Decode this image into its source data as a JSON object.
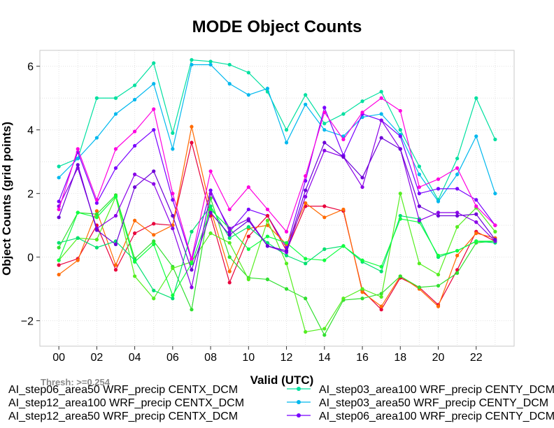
{
  "chart_data": {
    "type": "line",
    "title": "MODE Object Counts",
    "xlabel": "Valid (UTC)",
    "ylabel": "Object Counts (grid points)",
    "annotation": "Thresh: >=0.254",
    "xlim": [
      -1,
      24
    ],
    "ylim": [
      -2.8,
      6.5
    ],
    "grid": true,
    "x": [
      0,
      1,
      2,
      3,
      4,
      5,
      6,
      7,
      8,
      9,
      10,
      11,
      12,
      13,
      14,
      15,
      16,
      17,
      18,
      19,
      20,
      21,
      22,
      23
    ],
    "x_ticks": [
      0,
      2,
      4,
      6,
      8,
      10,
      12,
      14,
      16,
      18,
      20,
      22
    ],
    "x_tick_labels": [
      "00",
      "02",
      "04",
      "06",
      "08",
      "10",
      "12",
      "14",
      "16",
      "18",
      "20",
      "22"
    ],
    "y_ticks": [
      -2,
      0,
      2,
      4,
      6
    ],
    "y_tick_labels": [
      "−2",
      "0",
      "2",
      "4",
      "6"
    ],
    "legend_position": "bottom",
    "series": [
      {
        "name": "AI_step03_area100 WRF_precip CENTY_DCM",
        "color": "#00e0a0",
        "values": [
          2.85,
          3.1,
          5.0,
          5.0,
          5.4,
          6.1,
          3.9,
          6.2,
          6.15,
          6.05,
          5.8,
          5.2,
          4.0,
          5.1,
          4.2,
          4.5,
          4.9,
          5.2,
          4.0,
          2.85,
          1.8,
          3.1,
          5.0,
          3.7
        ]
      },
      {
        "name": "AI_step03_area50 WRF_precip CENTY_DCM",
        "color": "#00b8ee",
        "values": [
          2.5,
          3.1,
          3.75,
          4.5,
          4.95,
          5.45,
          3.4,
          6.05,
          6.05,
          5.45,
          5.1,
          5.3,
          3.6,
          4.8,
          4.0,
          3.8,
          4.4,
          4.5,
          3.85,
          2.6,
          1.75,
          2.6,
          3.8,
          2.0
        ]
      },
      {
        "name": "AI_step06_area100 WRF_precip CENTY_DCM",
        "color": "#7800ff",
        "values": [
          1.75,
          3.3,
          1.7,
          2.8,
          3.5,
          4.0,
          1.8,
          -0.1,
          2.1,
          0.8,
          1.5,
          1.3,
          0.3,
          2.4,
          4.7,
          3.2,
          4.5,
          4.3,
          3.8,
          2.0,
          2.15,
          2.15,
          1.8,
          1.0
        ]
      },
      {
        "name": "AI_step06_area50 WRF_precip CENTX_DCM",
        "color": "#e8003c",
        "values": [
          -0.25,
          -0.05,
          1.0,
          -0.4,
          0.75,
          1.05,
          1.0,
          3.6,
          1.3,
          -0.8,
          0.65,
          1.3,
          0.2,
          1.6,
          1.6,
          1.45,
          -1.05,
          -1.65,
          -0.65,
          -0.95,
          -1.5,
          -0.4,
          0.8,
          0.5
        ]
      },
      {
        "name": "AI_step12_area100 WRF_precip CENTX_DCM",
        "color": "#ff6a00",
        "values": [
          -0.55,
          -0.1,
          1.45,
          -0.25,
          1.15,
          0.7,
          1.0,
          4.1,
          1.5,
          -0.45,
          0.9,
          1.0,
          0.4,
          1.7,
          1.25,
          1.5,
          -1.1,
          -1.55,
          -0.6,
          -1.0,
          -1.55,
          0.05,
          0.75,
          0.6
        ]
      },
      {
        "name": "AI_step12_area50 WRF_precip CENTX_DCM",
        "color": "#30e030",
        "values": [
          0.3,
          1.4,
          1.35,
          1.95,
          -0.05,
          0.5,
          -0.3,
          -1.65,
          1.85,
          0.0,
          -0.65,
          -0.7,
          -1.0,
          -1.3,
          -2.45,
          -1.35,
          -1.3,
          -1.15,
          -0.6,
          -0.95,
          -0.9,
          -0.5,
          0.45,
          0.5
        ]
      },
      {
        "name": "",
        "color": "#55ee20",
        "values": [
          -0.1,
          0.6,
          0.55,
          1.9,
          -0.6,
          -1.3,
          -0.35,
          -0.15,
          0.75,
          0.45,
          -0.7,
          1.15,
          -0.2,
          -2.35,
          -2.25,
          -1.3,
          -1.0,
          -1.25,
          2.0,
          -0.2,
          -0.55,
          0.95,
          1.55,
          0.8
        ]
      },
      {
        "name": "",
        "color": "#00e070",
        "values": [
          0.45,
          0.6,
          0.3,
          0.5,
          -0.1,
          -1.05,
          -1.3,
          0.8,
          1.6,
          0.6,
          0.95,
          0.45,
          0.05,
          -0.2,
          0.25,
          0.35,
          -0.15,
          -0.45,
          1.3,
          1.2,
          0.0,
          0.2,
          0.5,
          0.45
        ]
      },
      {
        "name": "",
        "color": "#10ff40",
        "values": [
          -0.1,
          1.4,
          1.25,
          1.9,
          -0.15,
          0.4,
          -1.2,
          -0.2,
          1.5,
          0.9,
          0.25,
          0.65,
          0.45,
          -0.05,
          -0.1,
          0.35,
          -0.1,
          -0.3,
          1.2,
          1.1,
          0.05,
          0.2,
          0.5,
          0.5
        ]
      },
      {
        "name": "",
        "color": "#8a00e8",
        "values": [
          1.6,
          2.8,
          0.9,
          1.3,
          2.6,
          2.3,
          0.9,
          -0.95,
          2.0,
          0.9,
          1.2,
          0.35,
          0.15,
          1.9,
          3.35,
          3.15,
          2.2,
          4.3,
          3.4,
          1.15,
          1.4,
          1.4,
          1.1,
          0.5
        ]
      },
      {
        "name": "",
        "color": "#6d00d8",
        "values": [
          1.25,
          2.9,
          0.85,
          0.4,
          2.2,
          2.7,
          1.3,
          -0.4,
          1.4,
          0.7,
          1.15,
          0.35,
          0.2,
          2.1,
          3.6,
          3.15,
          2.5,
          3.75,
          3.4,
          1.6,
          1.3,
          1.3,
          1.35,
          0.55
        ]
      },
      {
        "name": "",
        "color": "#ff00e0",
        "values": [
          1.5,
          3.4,
          1.8,
          3.4,
          3.95,
          4.65,
          2.0,
          -0.05,
          2.7,
          1.5,
          2.2,
          1.5,
          0.8,
          2.55,
          4.55,
          3.7,
          4.55,
          5.0,
          4.6,
          2.2,
          2.45,
          2.8,
          1.6,
          1.0
        ]
      }
    ],
    "legend_left": [
      "AI_step06_area50 WRF_precip CENTX_DCM",
      "AI_step12_area100 WRF_precip CENTX_DCM",
      "AI_step12_area50 WRF_precip CENTX_DCM"
    ],
    "legend_right": [
      "AI_step03_area100 WRF_precip CENTY_DCM",
      "AI_step03_area50 WRF_precip CENTY_DCM",
      "AI_step06_area100 WRF_precip CENTY_DCM"
    ],
    "legend_right_colors": [
      "#00e0a0",
      "#00b8ee",
      "#7800ff"
    ]
  }
}
